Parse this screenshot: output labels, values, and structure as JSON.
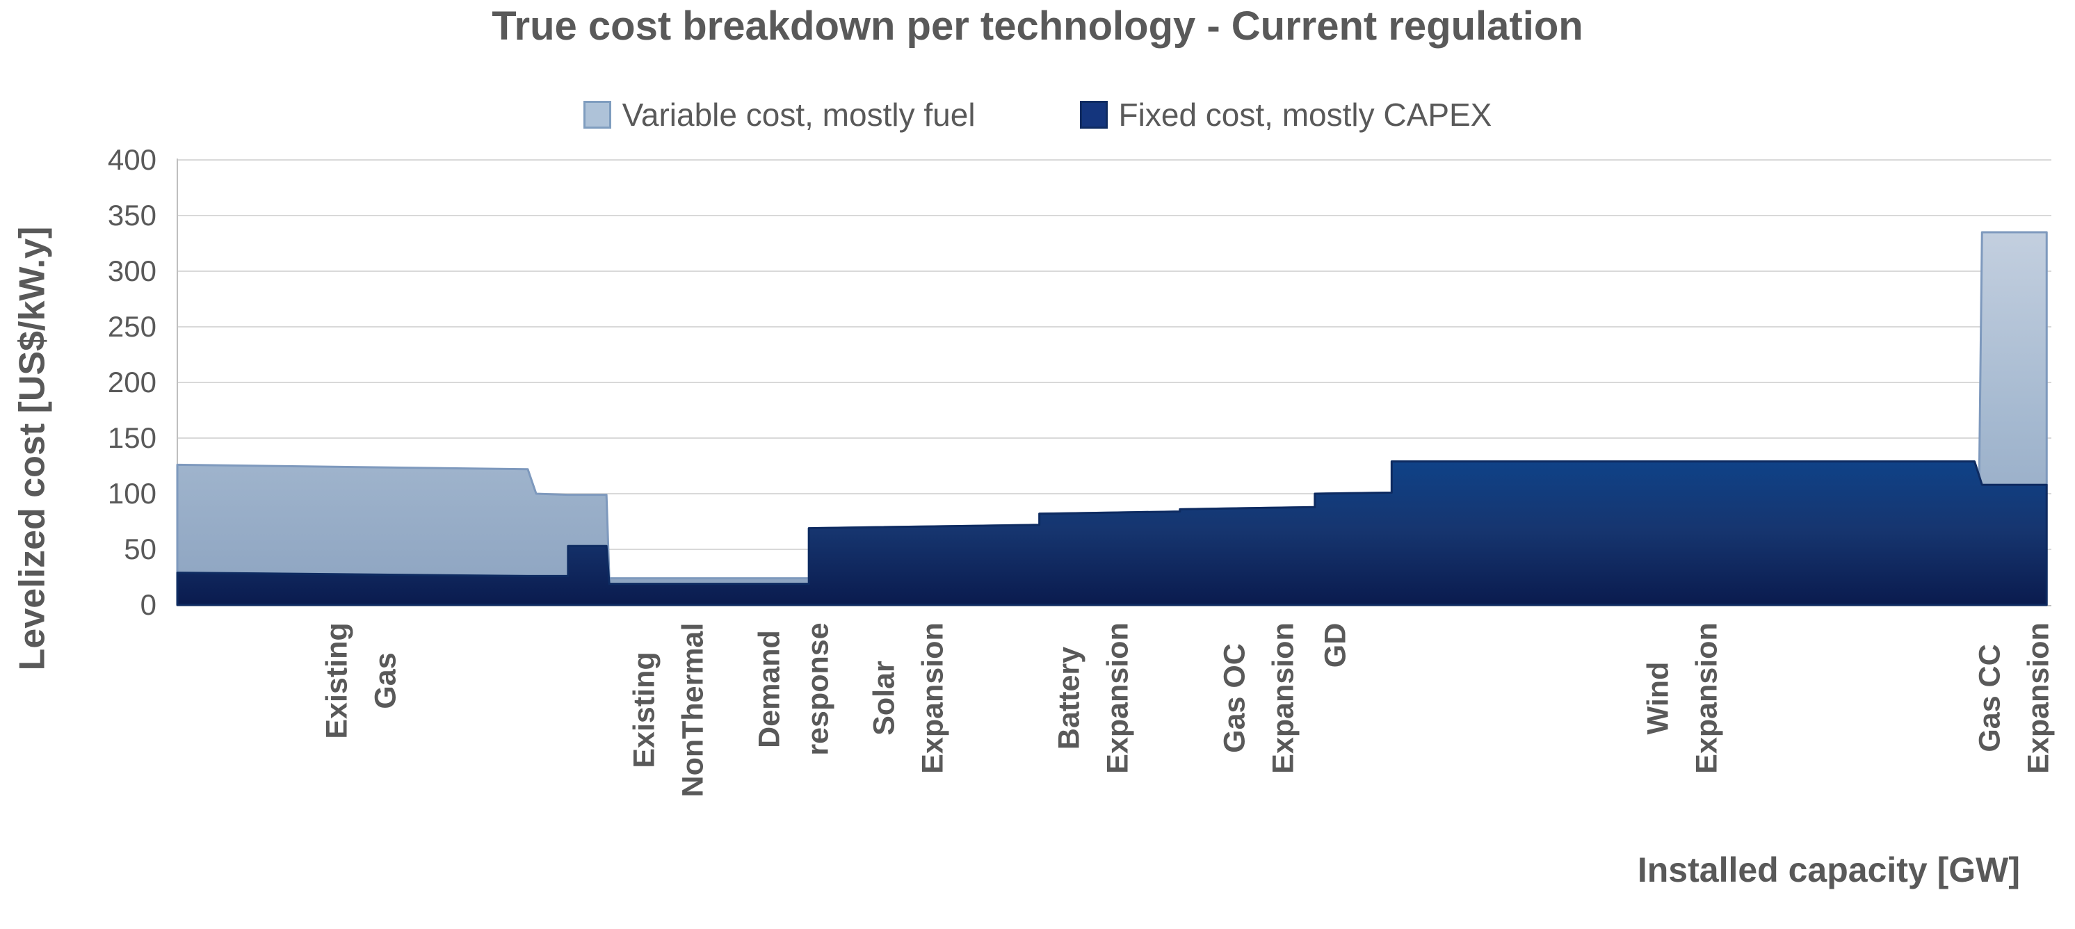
{
  "chart_data": {
    "type": "area",
    "stacked": true,
    "title": "True cost breakdown per technology - Current regulation",
    "xlabel": "Installed capacity [GW]",
    "ylabel": "Levelized cost [US$/kW.y]",
    "ylim": [
      0,
      400
    ],
    "yticks": [
      0,
      50,
      100,
      150,
      200,
      250,
      300,
      350,
      400
    ],
    "grid": true,
    "legend_position": "top-center",
    "series_names": [
      "Variable cost, mostly fuel",
      "Fixed cost, mostly CAPEX"
    ],
    "technologies": [
      {
        "label": "Existing Gas",
        "lines": [
          "Existing",
          "Gas"
        ],
        "label_x": 0.098,
        "fixed": 28,
        "variable": 95,
        "total": 123
      },
      {
        "label": "Existing NonThermal",
        "lines": [
          "Existing",
          "NonThermal"
        ],
        "label_x": 0.262,
        "fixed": 19,
        "variable": 5,
        "total": 24
      },
      {
        "label": "Demand response",
        "lines": [
          "Demand",
          "response"
        ],
        "label_x": 0.329,
        "fixed": 19,
        "variable": 5,
        "total": 24
      },
      {
        "label": "Solar Expansion",
        "lines": [
          "Solar",
          "Expansion"
        ],
        "label_x": 0.39,
        "fixed": 70,
        "variable": 0,
        "total": 70
      },
      {
        "label": "Battery Expansion",
        "lines": [
          "Battery",
          "Expansion"
        ],
        "label_x": 0.489,
        "fixed": 83,
        "variable": 0,
        "total": 83
      },
      {
        "label": "Gas OC Expansion",
        "lines": [
          "Gas OC",
          "Expansion"
        ],
        "label_x": 0.577,
        "fixed": 87,
        "variable": 0,
        "total": 87
      },
      {
        "label": "GD",
        "lines": [
          "GD"
        ],
        "label_x": 0.618,
        "fixed": 100,
        "variable": 0,
        "total": 100
      },
      {
        "label": "Wind Expansion",
        "lines": [
          "Wind",
          "Expansion"
        ],
        "label_x": 0.803,
        "fixed": 129,
        "variable": 0,
        "total": 129
      },
      {
        "label": "Gas CC Expansion",
        "lines": [
          "Gas CC",
          "Expansion"
        ],
        "label_x": 0.98,
        "fixed": 108,
        "variable": 227,
        "total": 335
      }
    ],
    "profile": [
      [
        0.0,
        29,
        126
      ],
      [
        0.187,
        26,
        122
      ],
      [
        0.1915,
        26,
        100
      ],
      [
        0.2085,
        26,
        99
      ],
      [
        0.2085,
        53,
        99
      ],
      [
        0.229,
        53,
        99
      ],
      [
        0.2305,
        19,
        24
      ],
      [
        0.337,
        19,
        24
      ],
      [
        0.337,
        69,
        69
      ],
      [
        0.46,
        72,
        72
      ],
      [
        0.46,
        82,
        82
      ],
      [
        0.535,
        84,
        84
      ],
      [
        0.535,
        86,
        86
      ],
      [
        0.607,
        88,
        88
      ],
      [
        0.607,
        100,
        100
      ],
      [
        0.648,
        101,
        101
      ],
      [
        0.648,
        129,
        129
      ],
      [
        0.959,
        129,
        129
      ],
      [
        0.9615,
        116,
        116
      ],
      [
        0.963,
        108,
        335
      ],
      [
        0.9975,
        108,
        335
      ]
    ],
    "colors": {
      "fixed_gradient": [
        "#1161B5",
        "#0B4A97",
        "#16356F",
        "#0A1B4E"
      ],
      "fixed_stroke": "#0E2B61",
      "variable_gradient": [
        "#C3CFDF",
        "#A5B9D0",
        "#8CA3C0"
      ],
      "variable_stroke": "#7E99BD",
      "legend_variable": "#AEC2D8",
      "legend_variable_border": "#7F9DBF",
      "legend_fixed": "#14357D",
      "legend_fixed_border": "#0E2B61",
      "grid": "#D9D9D9",
      "axis": "#BFBFBF",
      "text": "#595959"
    }
  }
}
